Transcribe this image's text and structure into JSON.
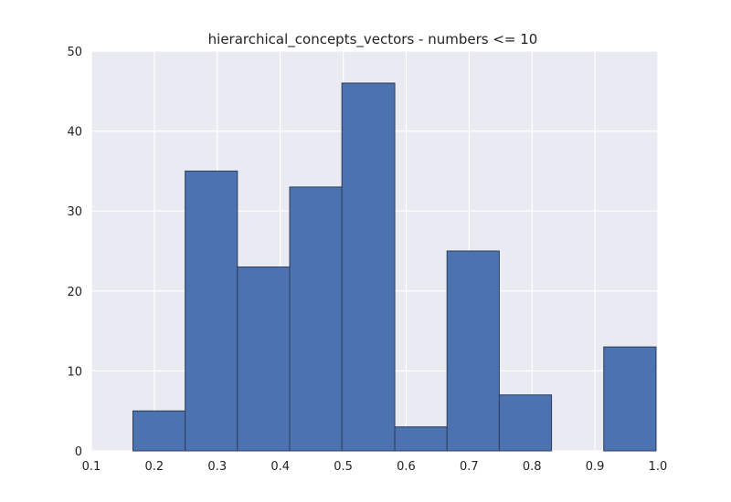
{
  "chart_data": {
    "type": "bar",
    "title": "hierarchical_concepts_vectors - numbers <= 10",
    "xlabel": "",
    "ylabel": "",
    "xlim": [
      0.1,
      1.0
    ],
    "ylim": [
      0,
      50
    ],
    "grid": true,
    "bins": [
      {
        "x0": 0.166,
        "x1": 0.249,
        "count": 5
      },
      {
        "x0": 0.249,
        "x1": 0.332,
        "count": 35
      },
      {
        "x0": 0.332,
        "x1": 0.415,
        "count": 23
      },
      {
        "x0": 0.415,
        "x1": 0.498,
        "count": 33
      },
      {
        "x0": 0.498,
        "x1": 0.582,
        "count": 46
      },
      {
        "x0": 0.582,
        "x1": 0.665,
        "count": 3
      },
      {
        "x0": 0.665,
        "x1": 0.748,
        "count": 25
      },
      {
        "x0": 0.748,
        "x1": 0.831,
        "count": 7
      },
      {
        "x0": 0.831,
        "x1": 0.914,
        "count": 0
      },
      {
        "x0": 0.914,
        "x1": 0.997,
        "count": 13
      }
    ],
    "x_ticks": [
      0.1,
      0.2,
      0.3,
      0.4,
      0.5,
      0.6,
      0.7,
      0.8,
      0.9,
      1.0
    ],
    "x_tick_labels": [
      "0.1",
      "0.2",
      "0.3",
      "0.4",
      "0.5",
      "0.6",
      "0.7",
      "0.8",
      "0.9",
      "1.0"
    ],
    "y_ticks": [
      0,
      10,
      20,
      30,
      40,
      50
    ],
    "y_tick_labels": [
      "0",
      "10",
      "20",
      "30",
      "40",
      "50"
    ],
    "colors": {
      "bar_fill": "#4c72b0",
      "bar_edge": "#2a3d5c",
      "plot_background": "#eaeaf2",
      "grid": "#ffffff",
      "text": "#222222"
    }
  }
}
